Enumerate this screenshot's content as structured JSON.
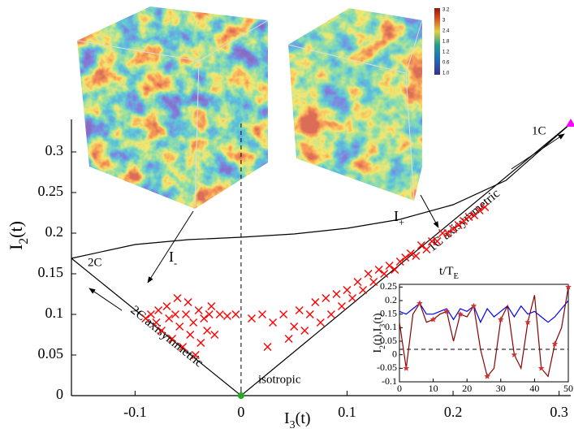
{
  "chart_data": [
    {
      "type": "scatter",
      "xlabel": [
        {
          "t": "I"
        },
        {
          "sub": "3"
        },
        {
          "t": "(t)"
        }
      ],
      "ylabel": [
        {
          "t": "I"
        },
        {
          "sub": "2"
        },
        {
          "t": "(t)"
        }
      ],
      "color": "#ff0000",
      "x": [
        -0.09,
        -0.085,
        -0.08,
        -0.078,
        -0.075,
        -0.07,
        -0.068,
        -0.065,
        -0.062,
        -0.06,
        -0.058,
        -0.055,
        -0.052,
        -0.05,
        -0.048,
        -0.045,
        -0.043,
        -0.04,
        -0.038,
        -0.035,
        -0.032,
        -0.03,
        -0.028,
        -0.025,
        -0.02,
        -0.013,
        -0.005,
        0.01,
        0.02,
        0.025,
        0.03,
        0.04,
        0.045,
        0.05,
        0.055,
        0.06,
        0.065,
        0.07,
        0.075,
        0.08,
        0.085,
        0.09,
        0.095,
        0.1,
        0.105,
        0.11,
        0.115,
        0.12,
        0.125,
        0.13,
        0.135,
        0.14,
        0.145,
        0.15,
        0.155,
        0.16,
        0.165,
        0.17,
        0.175,
        0.18,
        0.185,
        0.19,
        0.195,
        0.2,
        0.205,
        0.21,
        0.215,
        0.22,
        0.225,
        0.23
      ],
      "values": [
        0.095,
        0.1,
        0.09,
        0.105,
        0.08,
        0.11,
        0.095,
        0.07,
        0.1,
        0.12,
        0.085,
        0.06,
        0.1,
        0.115,
        0.075,
        0.09,
        0.05,
        0.105,
        0.065,
        0.095,
        0.08,
        0.1,
        0.11,
        0.075,
        0.1,
        0.098,
        0.1,
        0.095,
        0.1,
        0.06,
        0.09,
        0.1,
        0.07,
        0.085,
        0.105,
        0.08,
        0.1,
        0.115,
        0.09,
        0.12,
        0.1,
        0.125,
        0.11,
        0.13,
        0.12,
        0.14,
        0.13,
        0.15,
        0.14,
        0.155,
        0.15,
        0.16,
        0.155,
        0.165,
        0.17,
        0.175,
        0.172,
        0.185,
        0.18,
        0.19,
        0.19,
        0.2,
        0.2,
        0.205,
        0.21,
        0.215,
        0.22,
        0.222,
        0.228,
        0.232
      ],
      "xlim": [
        -0.16,
        0.311
      ],
      "ylim": [
        0,
        0.34
      ],
      "xticks": [
        -0.1,
        0,
        0.1,
        0.2,
        0.3
      ],
      "yticks": [
        0,
        0.05,
        0.1,
        0.15,
        0.2,
        0.25,
        0.3
      ],
      "vline": 0,
      "boundary_lines": [
        {
          "x": [
            -0.16,
            0,
            0.311
          ],
          "y": [
            0.169,
            0,
            0.335
          ]
        },
        {
          "x": [
            -0.16,
            -0.1,
            -0.05,
            0,
            0.05,
            0.1,
            0.15,
            0.2,
            0.25,
            0.311
          ],
          "y": [
            0.169,
            0.186,
            0.192,
            0.195,
            0.199,
            0.206,
            0.217,
            0.235,
            0.265,
            0.335
          ]
        }
      ],
      "corners": [
        {
          "x": 0,
          "y": 0,
          "color": "#22aa22"
        },
        {
          "x": 0.311,
          "y": 0.335,
          "color": "#ff00ff"
        }
      ],
      "annotations": {
        "one_c": "1C",
        "two_c": "2C",
        "isotropic": "isotropic",
        "two_c_axi": "2C axisymmetric",
        "one_c_axi": "1C axisymmetric",
        "i_minus": [
          {
            "t": "I"
          },
          {
            "sub": "-"
          }
        ],
        "i_plus": [
          {
            "t": "I"
          },
          {
            "sub": "+"
          }
        ]
      },
      "colorbar_labels": [
        3.2,
        3,
        2.4,
        1.8,
        1.2,
        0.6,
        "1.0"
      ]
    },
    {
      "type": "line",
      "xlabel": [
        {
          "t": "t/T"
        },
        {
          "sub": "E"
        }
      ],
      "ylabel": [
        {
          "t": "I"
        },
        {
          "sub": "2"
        },
        {
          "t": "(t),I"
        },
        {
          "sub": "3"
        },
        {
          "t": "(t)"
        }
      ],
      "x": [
        0,
        2,
        4,
        6,
        8,
        10,
        12,
        14,
        16,
        18,
        20,
        22,
        24,
        26,
        28,
        30,
        32,
        34,
        36,
        38,
        40,
        42,
        44,
        46,
        48,
        50
      ],
      "series": [
        {
          "color": "#0000ff",
          "values": [
            0.16,
            0.15,
            0.17,
            0.19,
            0.15,
            0.15,
            0.16,
            0.17,
            0.13,
            0.17,
            0.16,
            0.18,
            0.12,
            0.17,
            0.14,
            0.16,
            0.18,
            0.14,
            0.18,
            0.15,
            0.16,
            0.14,
            0.12,
            0.14,
            0.17,
            0.2
          ]
        },
        {
          "color": "#8b0000",
          "values": [
            0.12,
            -0.05,
            0.15,
            0.19,
            0.12,
            0.13,
            0.15,
            0.16,
            0.05,
            0.15,
            0.14,
            0.18,
            0.02,
            -0.08,
            -0.05,
            0.13,
            0.18,
            0,
            -0.05,
            0.12,
            0.22,
            -0.05,
            -0.08,
            0.04,
            0.1,
            0.25
          ]
        }
      ],
      "xlim": [
        0,
        50
      ],
      "ylim": [
        -0.1,
        0.26
      ],
      "xticks": [
        0,
        10,
        20,
        30,
        40,
        50
      ],
      "yticks": [
        -0.1,
        -0.05,
        0,
        0.05,
        0.1,
        0.15,
        0.2,
        0.25
      ],
      "hline": 0.02
    }
  ]
}
